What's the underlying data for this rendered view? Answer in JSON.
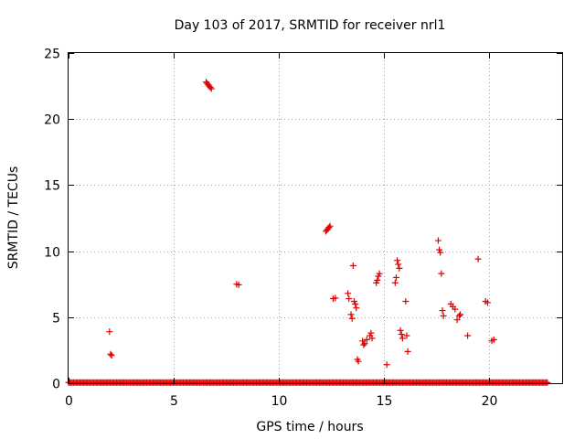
{
  "chart_data": {
    "type": "scatter",
    "title": "Day 103 of 2017, SRMTID for receiver nrl1",
    "xlabel": "GPS time / hours",
    "ylabel": "SRMTID / TECUs",
    "xlim": [
      0,
      23.5
    ],
    "ylim": [
      0,
      25
    ],
    "xticks": [
      0,
      5,
      10,
      15,
      20
    ],
    "yticks": [
      0,
      5,
      10,
      15,
      20,
      25
    ],
    "xtick_labels": [
      "0",
      "5",
      "10",
      "15",
      "20"
    ],
    "ytick_labels": [
      "0",
      "5",
      "10",
      "15",
      "20",
      "25"
    ],
    "grid": true,
    "marker": "+",
    "color": "#e00000",
    "series": [
      {
        "name": "nrl1",
        "points": [
          [
            1.95,
            3.9
          ],
          [
            2.0,
            2.2
          ],
          [
            2.05,
            2.1
          ],
          [
            6.55,
            22.8
          ],
          [
            6.6,
            22.7
          ],
          [
            6.65,
            22.6
          ],
          [
            6.7,
            22.5
          ],
          [
            6.75,
            22.4
          ],
          [
            6.8,
            22.3
          ],
          [
            8.0,
            7.5
          ],
          [
            8.1,
            7.45
          ],
          [
            12.25,
            11.5
          ],
          [
            12.3,
            11.6
          ],
          [
            12.35,
            11.7
          ],
          [
            12.4,
            11.8
          ],
          [
            12.45,
            11.9
          ],
          [
            12.6,
            6.4
          ],
          [
            12.7,
            6.45
          ],
          [
            13.3,
            6.8
          ],
          [
            13.35,
            6.4
          ],
          [
            13.45,
            5.2
          ],
          [
            13.5,
            4.9
          ],
          [
            13.55,
            8.9
          ],
          [
            13.6,
            6.2
          ],
          [
            13.65,
            6.0
          ],
          [
            13.7,
            5.7
          ],
          [
            13.75,
            1.8
          ],
          [
            13.8,
            1.65
          ],
          [
            14.0,
            3.2
          ],
          [
            14.05,
            2.9
          ],
          [
            14.1,
            3.0
          ],
          [
            14.2,
            3.3
          ],
          [
            14.35,
            3.6
          ],
          [
            14.4,
            3.8
          ],
          [
            14.45,
            3.4
          ],
          [
            14.65,
            7.6
          ],
          [
            14.7,
            7.8
          ],
          [
            14.75,
            8.1
          ],
          [
            14.8,
            8.3
          ],
          [
            15.15,
            1.4
          ],
          [
            15.55,
            7.6
          ],
          [
            15.6,
            8.0
          ],
          [
            15.65,
            9.3
          ],
          [
            15.7,
            9.0
          ],
          [
            15.75,
            8.7
          ],
          [
            15.8,
            4.0
          ],
          [
            15.85,
            3.7
          ],
          [
            15.9,
            3.4
          ],
          [
            16.05,
            6.2
          ],
          [
            16.1,
            3.6
          ],
          [
            16.15,
            2.4
          ],
          [
            17.6,
            10.8
          ],
          [
            17.65,
            10.1
          ],
          [
            17.7,
            9.9
          ],
          [
            17.75,
            8.3
          ],
          [
            17.8,
            5.5
          ],
          [
            17.85,
            5.1
          ],
          [
            18.2,
            6.0
          ],
          [
            18.3,
            5.8
          ],
          [
            18.4,
            5.6
          ],
          [
            18.5,
            4.8
          ],
          [
            18.6,
            5.1
          ],
          [
            18.65,
            5.2
          ],
          [
            19.0,
            3.6
          ],
          [
            19.5,
            9.4
          ],
          [
            19.85,
            6.2
          ],
          [
            19.95,
            6.1
          ],
          [
            20.15,
            3.2
          ],
          [
            20.25,
            3.3
          ]
        ]
      }
    ],
    "baseline": {
      "description_value": 0.05,
      "x_range": [
        0,
        22.8
      ]
    }
  }
}
